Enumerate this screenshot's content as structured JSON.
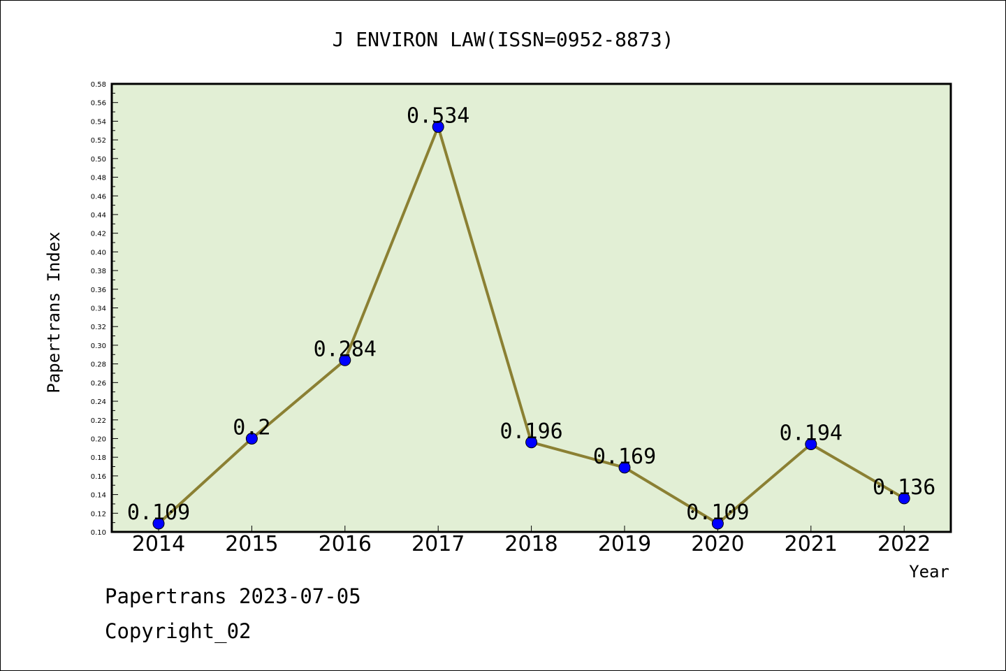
{
  "chart_data": {
    "type": "line",
    "title": "J ENVIRON LAW(ISSN=0952-8873)",
    "xlabel": "Year",
    "ylabel": "Papertrans Index",
    "categories": [
      "2014",
      "2015",
      "2016",
      "2017",
      "2018",
      "2019",
      "2020",
      "2021",
      "2022"
    ],
    "series": [
      {
        "values": [
          0.109,
          0.2,
          0.284,
          0.534,
          0.196,
          0.169,
          0.109,
          0.194,
          0.136
        ],
        "labels": [
          "0.109",
          "0.2",
          "0.284",
          "0.534",
          "0.196",
          "0.169",
          "0.109",
          "0.194",
          "0.136"
        ]
      }
    ],
    "ylim": [
      0.1,
      0.58
    ],
    "ytick_step": 0.02,
    "grid": false,
    "colors": {
      "plot_background": "#e2efd5",
      "line": "#8b8033",
      "marker": "#0000ff"
    }
  },
  "footer": {
    "line1": "Papertrans 2023-07-05",
    "line2": "Copyright_02"
  }
}
